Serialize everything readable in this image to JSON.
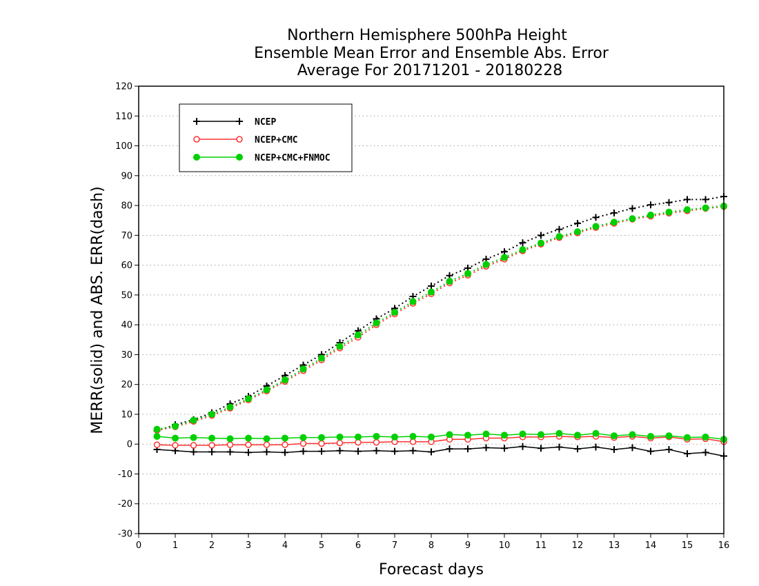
{
  "chart_data": {
    "type": "line",
    "title": [
      "Northern Hemisphere 500hPa Height",
      "Ensemble Mean Error and Ensemble Abs. Error",
      "Average For 20171201 - 20180228"
    ],
    "xlabel": "Forecast days",
    "ylabel": "MERR(solid) and ABS. ERR(dash)",
    "xlim": [
      0,
      16
    ],
    "ylim": [
      -30,
      120
    ],
    "x_ticks": [
      0,
      1,
      2,
      3,
      4,
      5,
      6,
      7,
      8,
      9,
      10,
      11,
      12,
      13,
      14,
      15,
      16
    ],
    "y_ticks": [
      -30,
      -20,
      -10,
      0,
      10,
      20,
      30,
      40,
      50,
      60,
      70,
      80,
      90,
      100,
      110,
      120
    ],
    "grid": "horizontal dotted",
    "legend_position": "top-left",
    "x": [
      0.5,
      1,
      1.5,
      2,
      2.5,
      3,
      3.5,
      4,
      4.5,
      5,
      5.5,
      6,
      6.5,
      7,
      7.5,
      8,
      8.5,
      9,
      9.5,
      10,
      10.5,
      11,
      11.5,
      12,
      12.5,
      13,
      13.5,
      14,
      14.5,
      15,
      15.5,
      16
    ],
    "series": [
      {
        "name": "NCEP",
        "color": "#000000",
        "marker": "plus",
        "merr": [
          -1.8,
          -2.2,
          -2.6,
          -2.6,
          -2.6,
          -2.8,
          -2.6,
          -2.8,
          -2.4,
          -2.4,
          -2.2,
          -2.4,
          -2.2,
          -2.4,
          -2.2,
          -2.6,
          -1.6,
          -1.6,
          -1.2,
          -1.4,
          -0.8,
          -1.4,
          -1.0,
          -1.6,
          -1.0,
          -1.8,
          -1.2,
          -2.4,
          -1.8,
          -3.2,
          -2.8,
          -4.0
        ],
        "abs_err": [
          4.5,
          6.5,
          8.2,
          10.5,
          13.5,
          16.0,
          19.5,
          23.0,
          26.5,
          30.0,
          34.0,
          38.0,
          42.0,
          45.5,
          49.5,
          53.0,
          56.5,
          59.0,
          62.0,
          64.5,
          67.5,
          70.0,
          72.0,
          74.0,
          76.0,
          77.5,
          79.0,
          80.2,
          81.0,
          82.0,
          82.0,
          83.0
        ]
      },
      {
        "name": "NCEP+CMC",
        "color": "#ff3030",
        "marker": "open-circle",
        "merr": [
          -0.2,
          -0.4,
          -0.4,
          -0.4,
          -0.2,
          -0.2,
          -0.2,
          -0.2,
          0.2,
          0.2,
          0.4,
          0.6,
          0.6,
          0.8,
          0.8,
          0.8,
          1.6,
          1.6,
          2.0,
          2.0,
          2.4,
          2.4,
          2.6,
          2.4,
          2.6,
          2.2,
          2.6,
          2.0,
          2.4,
          1.6,
          1.8,
          0.8
        ],
        "abs_err": [
          4.6,
          5.8,
          7.6,
          9.6,
          12.0,
          14.8,
          17.8,
          21.0,
          24.6,
          28.2,
          32.2,
          35.8,
          40.0,
          43.6,
          47.2,
          50.4,
          54.0,
          56.6,
          59.6,
          62.0,
          64.8,
          67.0,
          69.2,
          70.8,
          72.6,
          74.0,
          75.4,
          76.4,
          77.4,
          78.2,
          79.0,
          79.6
        ]
      },
      {
        "name": "NCEP+CMC+FNMOC",
        "color": "#00d000",
        "marker": "filled-circle",
        "merr": [
          2.6,
          2.0,
          2.2,
          2.0,
          1.8,
          2.0,
          1.8,
          2.0,
          2.2,
          2.2,
          2.4,
          2.4,
          2.6,
          2.4,
          2.6,
          2.4,
          3.2,
          3.0,
          3.4,
          3.0,
          3.4,
          3.2,
          3.6,
          3.0,
          3.6,
          2.8,
          3.2,
          2.6,
          2.8,
          2.2,
          2.4,
          1.6
        ],
        "abs_err": [
          5.0,
          6.0,
          8.0,
          10.0,
          12.4,
          15.2,
          18.2,
          21.5,
          25.2,
          28.8,
          32.8,
          36.6,
          40.6,
          44.2,
          47.8,
          51.0,
          54.6,
          57.2,
          60.2,
          62.6,
          65.2,
          67.4,
          69.6,
          71.2,
          73.0,
          74.4,
          75.6,
          76.8,
          77.8,
          78.6,
          79.2,
          79.8
        ]
      }
    ]
  }
}
